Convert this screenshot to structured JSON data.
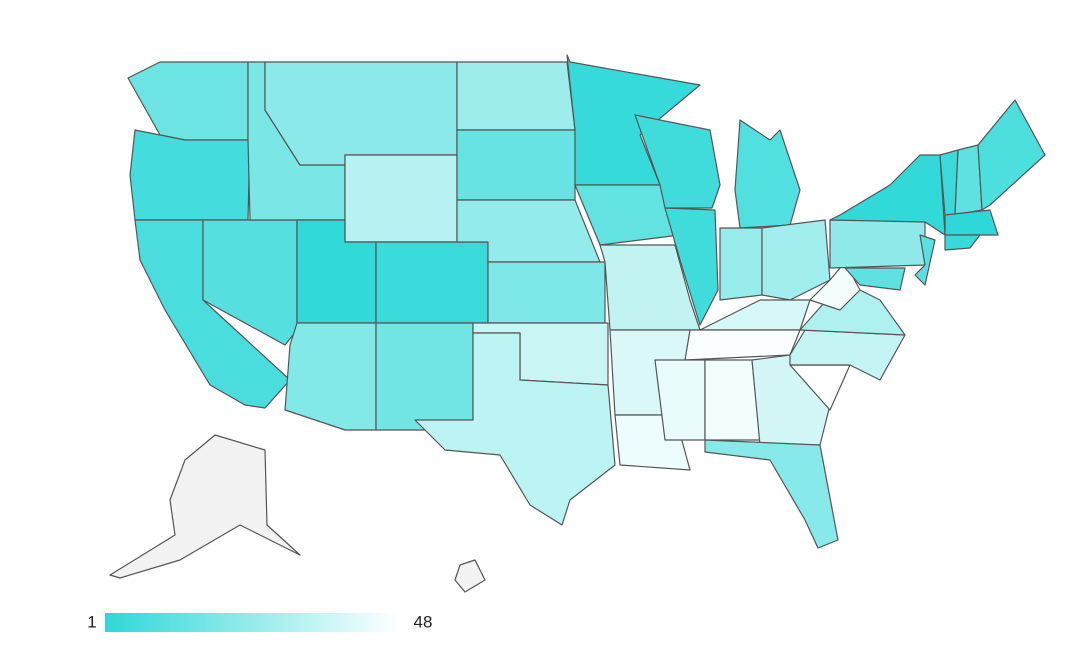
{
  "chart_data": {
    "type": "choropleth",
    "values": [
      15,
      6,
      7,
      10,
      18,
      22,
      32,
      2,
      4,
      20,
      16,
      26,
      14,
      24,
      19,
      36,
      33,
      3,
      13,
      34,
      40,
      44,
      5,
      5,
      9,
      25,
      27,
      39,
      47,
      43,
      45,
      38,
      21,
      48,
      35,
      30,
      46,
      23,
      2,
      12,
      11,
      4,
      12,
      8,
      1,
      3,
      null,
      null
    ],
    "valuelim": [
      1,
      48
    ],
    "color_low": "#2ed8d8",
    "color_high": "#ffffff",
    "missing_color": "#f2f2f2"
  }
}
